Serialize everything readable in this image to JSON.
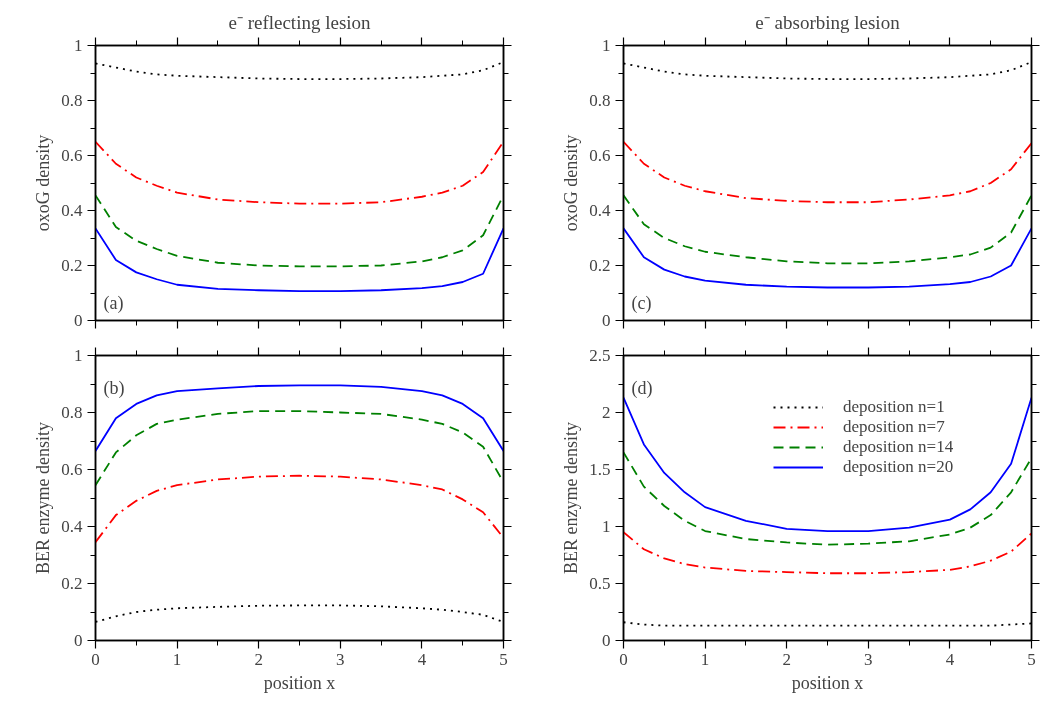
{
  "chart_data": [
    {
      "type": "line",
      "title": "e⁻ reflecting lesion",
      "ylabel": "oxoG density",
      "annotations": [
        "(a)"
      ],
      "tick_labels": "y",
      "grid": false,
      "legend": false,
      "x": [
        0,
        0.25,
        0.5,
        0.75,
        1,
        1.5,
        2,
        2.5,
        3,
        3.5,
        4,
        4.25,
        4.5,
        4.75,
        5
      ],
      "xlim": [
        0,
        5
      ],
      "xticks": [
        0,
        {
          "value": 0.5,
          "label": null
        },
        1,
        {
          "value": 1.5,
          "label": null
        },
        2,
        {
          "value": 2.5,
          "label": null
        },
        3,
        {
          "value": 3.5,
          "label": null
        },
        4,
        {
          "value": 4.5,
          "label": null
        },
        5
      ],
      "ylim": [
        0,
        1
      ],
      "yticks": [
        0,
        {
          "value": 0.1,
          "label": null
        },
        0.2,
        {
          "value": 0.3,
          "label": null
        },
        0.4,
        {
          "value": 0.5,
          "label": null
        },
        0.6,
        {
          "value": 0.7,
          "label": null
        },
        0.8,
        {
          "value": 0.9,
          "label": null
        },
        1
      ],
      "series": [
        {
          "color": "#000000",
          "line_style": "dotted",
          "values": [
            0.935,
            0.92,
            0.905,
            0.895,
            0.89,
            0.885,
            0.88,
            0.878,
            0.878,
            0.88,
            0.885,
            0.89,
            0.895,
            0.91,
            0.94
          ]
        },
        {
          "color": "#ff0000",
          "line_style": "dashdot",
          "values": [
            0.65,
            0.57,
            0.52,
            0.49,
            0.465,
            0.44,
            0.43,
            0.425,
            0.425,
            0.43,
            0.45,
            0.465,
            0.49,
            0.54,
            0.65
          ]
        },
        {
          "color": "#008000",
          "line_style": "dashed",
          "values": [
            0.455,
            0.34,
            0.29,
            0.26,
            0.235,
            0.21,
            0.2,
            0.197,
            0.197,
            0.2,
            0.215,
            0.23,
            0.255,
            0.31,
            0.455
          ]
        },
        {
          "color": "#0000ff",
          "line_style": "solid",
          "values": [
            0.335,
            0.22,
            0.175,
            0.15,
            0.13,
            0.115,
            0.11,
            0.107,
            0.107,
            0.11,
            0.118,
            0.125,
            0.14,
            0.17,
            0.335
          ]
        }
      ]
    },
    {
      "type": "line",
      "title": "e⁻ absorbing lesion",
      "ylabel": "oxoG density",
      "annotations": [
        "(c)"
      ],
      "tick_labels": "y",
      "grid": false,
      "legend": false,
      "x": [
        0,
        0.25,
        0.5,
        0.75,
        1,
        1.5,
        2,
        2.5,
        3,
        3.5,
        4,
        4.25,
        4.5,
        4.75,
        5
      ],
      "xlim": [
        0,
        5
      ],
      "xticks": [
        0,
        {
          "value": 0.5,
          "label": null
        },
        1,
        {
          "value": 1.5,
          "label": null
        },
        2,
        {
          "value": 2.5,
          "label": null
        },
        3,
        {
          "value": 3.5,
          "label": null
        },
        4,
        {
          "value": 4.5,
          "label": null
        },
        5
      ],
      "ylim": [
        0,
        1
      ],
      "yticks": [
        0,
        {
          "value": 0.1,
          "label": null
        },
        0.2,
        {
          "value": 0.3,
          "label": null
        },
        0.4,
        {
          "value": 0.5,
          "label": null
        },
        0.6,
        {
          "value": 0.7,
          "label": null
        },
        0.8,
        {
          "value": 0.9,
          "label": null
        },
        1
      ],
      "series": [
        {
          "color": "#000000",
          "line_style": "dotted",
          "values": [
            0.935,
            0.92,
            0.905,
            0.895,
            0.89,
            0.885,
            0.88,
            0.878,
            0.878,
            0.88,
            0.885,
            0.89,
            0.895,
            0.91,
            0.94
          ]
        },
        {
          "color": "#ff0000",
          "line_style": "dashdot",
          "values": [
            0.65,
            0.57,
            0.52,
            0.49,
            0.47,
            0.445,
            0.435,
            0.43,
            0.43,
            0.44,
            0.455,
            0.47,
            0.5,
            0.55,
            0.645
          ]
        },
        {
          "color": "#008000",
          "line_style": "dashed",
          "values": [
            0.455,
            0.35,
            0.3,
            0.27,
            0.25,
            0.23,
            0.215,
            0.208,
            0.208,
            0.215,
            0.23,
            0.24,
            0.265,
            0.32,
            0.455
          ]
        },
        {
          "color": "#0000ff",
          "line_style": "solid",
          "values": [
            0.335,
            0.23,
            0.185,
            0.16,
            0.145,
            0.13,
            0.123,
            0.12,
            0.12,
            0.123,
            0.132,
            0.14,
            0.16,
            0.2,
            0.335
          ]
        }
      ]
    },
    {
      "type": "line",
      "xlabel": "position x",
      "ylabel": "BER enzyme density",
      "annotations": [
        "(b)"
      ],
      "grid": false,
      "legend": false,
      "x": [
        0,
        0.25,
        0.5,
        0.75,
        1,
        1.5,
        2,
        2.5,
        3,
        3.5,
        4,
        4.25,
        4.5,
        4.75,
        5
      ],
      "xlim": [
        0,
        5
      ],
      "xticks": [
        0,
        {
          "value": 0.5,
          "label": null
        },
        1,
        {
          "value": 1.5,
          "label": null
        },
        2,
        {
          "value": 2.5,
          "label": null
        },
        3,
        {
          "value": 3.5,
          "label": null
        },
        4,
        {
          "value": 4.5,
          "label": null
        },
        5
      ],
      "ylim": [
        0,
        1
      ],
      "yticks": [
        0,
        {
          "value": 0.1,
          "label": null
        },
        0.2,
        {
          "value": 0.3,
          "label": null
        },
        0.4,
        {
          "value": 0.5,
          "label": null
        },
        0.6,
        {
          "value": 0.7,
          "label": null
        },
        0.8,
        {
          "value": 0.9,
          "label": null
        },
        1
      ],
      "series": [
        {
          "color": "#000000",
          "line_style": "dotted",
          "values": [
            0.065,
            0.085,
            0.1,
            0.108,
            0.113,
            0.118,
            0.122,
            0.123,
            0.123,
            0.12,
            0.113,
            0.108,
            0.1,
            0.09,
            0.065
          ]
        },
        {
          "color": "#ff0000",
          "line_style": "dashdot",
          "values": [
            0.345,
            0.44,
            0.49,
            0.525,
            0.545,
            0.565,
            0.575,
            0.578,
            0.575,
            0.565,
            0.545,
            0.53,
            0.495,
            0.45,
            0.36
          ]
        },
        {
          "color": "#008000",
          "line_style": "dashed",
          "values": [
            0.545,
            0.66,
            0.72,
            0.76,
            0.775,
            0.795,
            0.805,
            0.805,
            0.8,
            0.795,
            0.775,
            0.76,
            0.73,
            0.68,
            0.555
          ]
        },
        {
          "color": "#0000ff",
          "line_style": "solid",
          "values": [
            0.665,
            0.78,
            0.83,
            0.86,
            0.875,
            0.885,
            0.893,
            0.895,
            0.895,
            0.89,
            0.875,
            0.86,
            0.83,
            0.78,
            0.665
          ]
        }
      ]
    },
    {
      "type": "line",
      "xlabel": "position x",
      "ylabel": "BER enzyme density",
      "annotations": [
        "(d)"
      ],
      "grid": false,
      "legend": "top right",
      "x": [
        0,
        0.25,
        0.5,
        0.75,
        1,
        1.5,
        2,
        2.5,
        3,
        3.5,
        4,
        4.25,
        4.5,
        4.75,
        5
      ],
      "xlim": [
        0,
        5
      ],
      "xticks": [
        0,
        {
          "value": 0.5,
          "label": null
        },
        1,
        {
          "value": 1.5,
          "label": null
        },
        2,
        {
          "value": 2.5,
          "label": null
        },
        3,
        {
          "value": 3.5,
          "label": null
        },
        4,
        {
          "value": 4.5,
          "label": null
        },
        5
      ],
      "ylim": [
        0,
        2.5
      ],
      "yticks": [
        0,
        {
          "value": 0.25,
          "label": null
        },
        0.5,
        {
          "value": 0.75,
          "label": null
        },
        1,
        {
          "value": 1.25,
          "label": null
        },
        1.5,
        {
          "value": 1.75,
          "label": null
        },
        2,
        {
          "value": 2.25,
          "label": null
        },
        2.5
      ],
      "series": [
        {
          "name": "deposition n=1",
          "color": "#000000",
          "line_style": "dotted",
          "values": [
            0.16,
            0.14,
            0.13,
            0.13,
            0.13,
            0.13,
            0.13,
            0.13,
            0.13,
            0.13,
            0.13,
            0.13,
            0.13,
            0.14,
            0.15
          ]
        },
        {
          "name": "deposition n=7",
          "color": "#ff0000",
          "line_style": "dashdot",
          "values": [
            0.95,
            0.8,
            0.72,
            0.67,
            0.64,
            0.61,
            0.6,
            0.59,
            0.59,
            0.6,
            0.62,
            0.65,
            0.7,
            0.78,
            0.94
          ]
        },
        {
          "name": "deposition n=14",
          "color": "#008000",
          "line_style": "dashed",
          "values": [
            1.65,
            1.35,
            1.18,
            1.05,
            0.96,
            0.89,
            0.86,
            0.84,
            0.85,
            0.87,
            0.93,
            0.99,
            1.1,
            1.3,
            1.6
          ]
        },
        {
          "name": "deposition n=20",
          "color": "#0000ff",
          "line_style": "solid",
          "values": [
            2.13,
            1.72,
            1.47,
            1.3,
            1.17,
            1.05,
            0.98,
            0.96,
            0.96,
            0.99,
            1.06,
            1.15,
            1.3,
            1.55,
            2.13
          ]
        }
      ]
    }
  ]
}
